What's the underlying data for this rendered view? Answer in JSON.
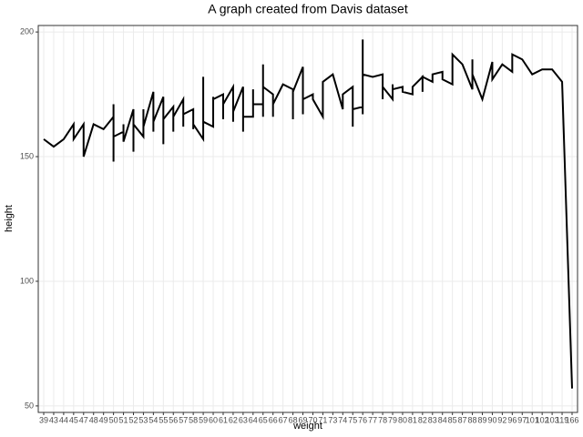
{
  "chart_data": {
    "type": "line",
    "title": "A graph created from Davis dataset",
    "x_label": "weight",
    "y_label": "height",
    "categories": [
      "39",
      "43",
      "44",
      "45",
      "47",
      "48",
      "49",
      "50",
      "51",
      "52",
      "53",
      "54",
      "55",
      "56",
      "57",
      "58",
      "59",
      "60",
      "61",
      "62",
      "63",
      "64",
      "65",
      "66",
      "67",
      "68",
      "69",
      "70",
      "71",
      "73",
      "74",
      "75",
      "76",
      "77",
      "78",
      "79",
      "80",
      "81",
      "82",
      "83",
      "84",
      "85",
      "87",
      "88",
      "89",
      "90",
      "92",
      "96",
      "97",
      "101",
      "102",
      "103",
      "119",
      "166"
    ],
    "ylim": [
      47.4,
      202.6
    ],
    "yticks": [
      50,
      100,
      150,
      200
    ],
    "grid": true,
    "series": [
      {
        "color": "#000000",
        "x": [
          "39",
          "43",
          "44",
          "45",
          "45",
          "47",
          "47",
          "48",
          "49",
          "50",
          "50",
          "50",
          "50",
          "51",
          "51",
          "51",
          "52",
          "52",
          "52",
          "53",
          "53",
          "53",
          "54",
          "54",
          "54",
          "55",
          "55",
          "55",
          "56",
          "56",
          "56",
          "57",
          "57",
          "57",
          "58",
          "58",
          "58",
          "59",
          "59",
          "59",
          "60",
          "60",
          "60",
          "61",
          "61",
          "61",
          "62",
          "62",
          "62",
          "63",
          "63",
          "63",
          "64",
          "64",
          "64",
          "65",
          "65",
          "65",
          "65",
          "66",
          "66",
          "66",
          "67",
          "68",
          "68",
          "68",
          "69",
          "69",
          "69",
          "70",
          "70",
          "71",
          "71",
          "71",
          "73",
          "74",
          "74",
          "75",
          "75",
          "75",
          "76",
          "76",
          "76",
          "76",
          "77",
          "78",
          "78",
          "78",
          "79",
          "79",
          "79",
          "80",
          "80",
          "81",
          "81",
          "82",
          "82",
          "82",
          "83",
          "83",
          "84",
          "84",
          "85",
          "85",
          "87",
          "88",
          "88",
          "88",
          "89",
          "90",
          "90",
          "92",
          "96",
          "96",
          "97",
          "101",
          "102",
          "103",
          "119",
          "166"
        ],
        "values": [
          157,
          154,
          157,
          163,
          157,
          163,
          150,
          163,
          161,
          166,
          171,
          148,
          158,
          160,
          163,
          156,
          169,
          152,
          163,
          158,
          169,
          162,
          176,
          160,
          164,
          174,
          155,
          165,
          170,
          160,
          166,
          173,
          162,
          167,
          169,
          161,
          163,
          157,
          182,
          164,
          162,
          174,
          173,
          175,
          165,
          171,
          178,
          164,
          168,
          178,
          160,
          166,
          166,
          177,
          171,
          171,
          187,
          166,
          178,
          175,
          166,
          171,
          179,
          177,
          165,
          176,
          186,
          167,
          173,
          175,
          173,
          166,
          178,
          180,
          183,
          169,
          175,
          178,
          162,
          169,
          170,
          167,
          197,
          183,
          182,
          183,
          173,
          178,
          173,
          179,
          177,
          178,
          176,
          175,
          178,
          182,
          176,
          182,
          180,
          183,
          184,
          181,
          179,
          191,
          187,
          177,
          189,
          183,
          173,
          188,
          181,
          187,
          184,
          191,
          189,
          183,
          185,
          185,
          180,
          57
        ]
      }
    ]
  }
}
